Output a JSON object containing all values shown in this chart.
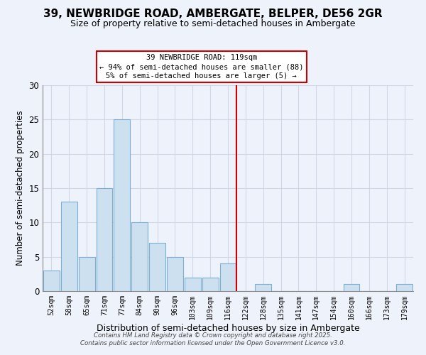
{
  "title1": "39, NEWBRIDGE ROAD, AMBERGATE, BELPER, DE56 2GR",
  "title2": "Size of property relative to semi-detached houses in Ambergate",
  "xlabel": "Distribution of semi-detached houses by size in Ambergate",
  "ylabel": "Number of semi-detached properties",
  "bin_labels": [
    "52sqm",
    "58sqm",
    "65sqm",
    "71sqm",
    "77sqm",
    "84sqm",
    "90sqm",
    "96sqm",
    "103sqm",
    "109sqm",
    "116sqm",
    "122sqm",
    "128sqm",
    "135sqm",
    "141sqm",
    "147sqm",
    "154sqm",
    "160sqm",
    "166sqm",
    "173sqm",
    "179sqm"
  ],
  "bar_values": [
    3,
    13,
    5,
    15,
    25,
    10,
    7,
    5,
    2,
    2,
    4,
    0,
    1,
    0,
    0,
    0,
    0,
    1,
    0,
    0,
    1
  ],
  "bar_color": "#cce0f0",
  "bar_edge_color": "#7ab0d4",
  "vline_x": 10.5,
  "vline_color": "#cc0000",
  "annotation_title": "39 NEWBRIDGE ROAD: 119sqm",
  "annotation_line1": "← 94% of semi-detached houses are smaller (88)",
  "annotation_line2": "5% of semi-detached houses are larger (5) →",
  "ylim": [
    0,
    30
  ],
  "yticks": [
    0,
    5,
    10,
    15,
    20,
    25,
    30
  ],
  "footer1": "Contains HM Land Registry data © Crown copyright and database right 2025.",
  "footer2": "Contains public sector information licensed under the Open Government Licence v3.0.",
  "bg_color": "#eef2fa",
  "grid_color": "#d0d8e8",
  "title1_fontsize": 11,
  "title2_fontsize": 9
}
